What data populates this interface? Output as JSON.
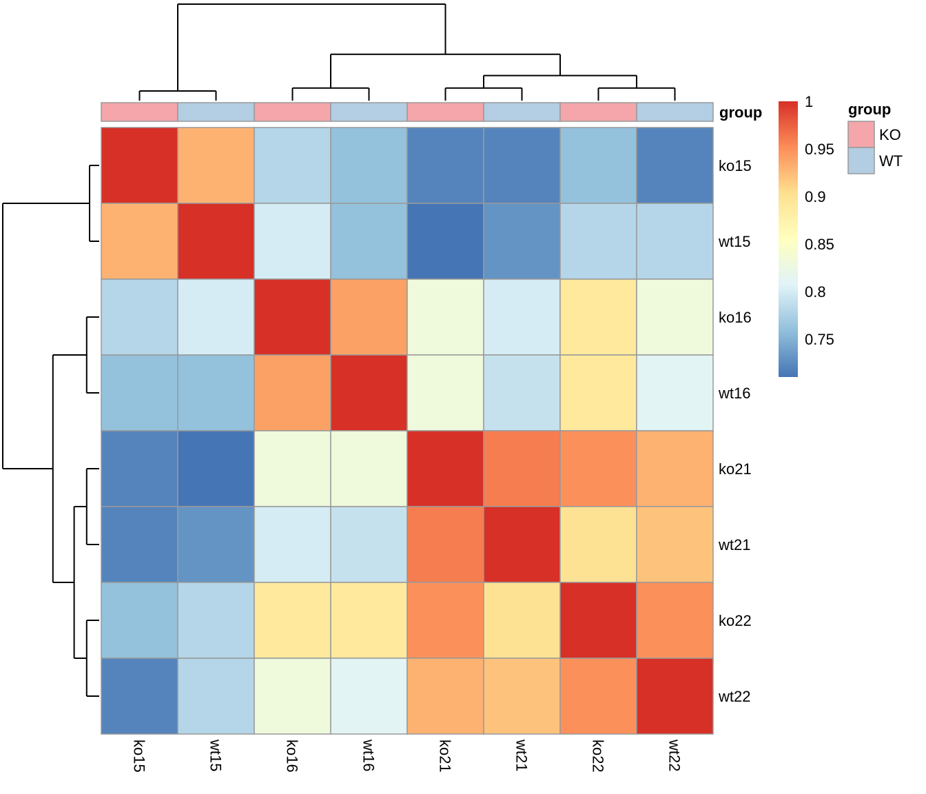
{
  "chart_data": {
    "type": "heatmap",
    "title": "",
    "rows": [
      "ko15",
      "wt15",
      "ko16",
      "wt16",
      "ko21",
      "wt21",
      "ko22",
      "wt22"
    ],
    "columns": [
      "ko15",
      "wt15",
      "ko16",
      "wt16",
      "ko21",
      "wt21",
      "ko22",
      "wt22"
    ],
    "values": [
      [
        1.0,
        0.93,
        0.78,
        0.76,
        0.72,
        0.72,
        0.76,
        0.72
      ],
      [
        0.93,
        1.0,
        0.8,
        0.76,
        0.71,
        0.73,
        0.78,
        0.78
      ],
      [
        0.78,
        0.8,
        1.0,
        0.94,
        0.83,
        0.8,
        0.89,
        0.83
      ],
      [
        0.76,
        0.76,
        0.94,
        1.0,
        0.83,
        0.79,
        0.89,
        0.81
      ],
      [
        0.72,
        0.71,
        0.83,
        0.83,
        1.0,
        0.96,
        0.95,
        0.93
      ],
      [
        0.72,
        0.73,
        0.8,
        0.79,
        0.96,
        1.0,
        0.9,
        0.92
      ],
      [
        0.76,
        0.78,
        0.89,
        0.89,
        0.95,
        0.9,
        1.0,
        0.95
      ],
      [
        0.72,
        0.78,
        0.83,
        0.81,
        0.93,
        0.92,
        0.95,
        1.0
      ]
    ],
    "annotation": {
      "name": "group",
      "values": [
        "KO",
        "WT",
        "KO",
        "WT",
        "KO",
        "WT",
        "KO",
        "WT"
      ],
      "colors": {
        "KO": "#F4A6AA",
        "WT": "#B3CDE3"
      }
    },
    "legend": {
      "title": "group",
      "entries": [
        "KO",
        "WT"
      ],
      "placement": "right"
    },
    "colorbar": {
      "min": 0.71,
      "max": 1.0,
      "ticks": [
        0.75,
        0.8,
        0.85,
        0.9,
        0.95,
        1
      ],
      "tick_labels": [
        "0.75",
        "0.8",
        "0.85",
        "0.9",
        "0.95",
        "1"
      ],
      "palette": [
        "#4575B4",
        "#91BFDB",
        "#E0F3F8",
        "#FFFFBF",
        "#FEE090",
        "#FC8D59",
        "#D73027"
      ]
    },
    "column_dendrogram": [
      [
        0,
        1
      ],
      [
        2,
        3
      ],
      [
        4,
        5
      ],
      [
        6,
        7
      ],
      [
        10,
        11
      ],
      [
        9,
        12
      ],
      [
        8,
        13
      ]
    ],
    "row_dendrogram": [
      [
        0,
        1
      ],
      [
        2,
        3
      ],
      [
        4,
        5
      ],
      [
        6,
        7
      ],
      [
        10,
        11
      ],
      [
        9,
        12
      ],
      [
        8,
        13
      ]
    ]
  }
}
